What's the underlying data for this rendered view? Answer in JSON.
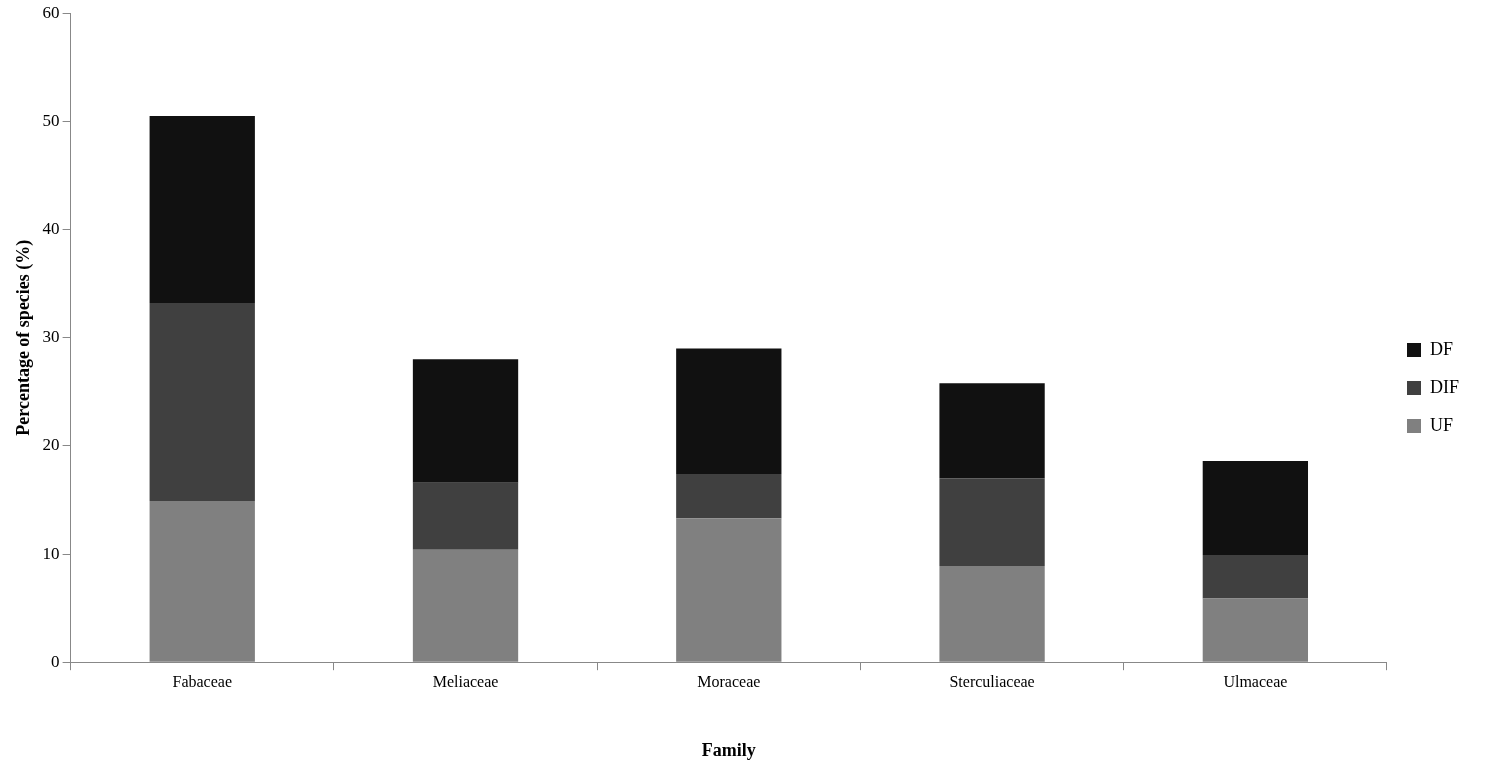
{
  "chart_data": {
    "type": "bar",
    "stacked": true,
    "xlabel": "Family",
    "ylabel": "Percentage of species (%)",
    "categories": [
      "Fabaceae",
      "Meliaceae",
      "Moraceae",
      "Sterculiaceae",
      "Ulmaceae"
    ],
    "series": [
      {
        "name": "UF",
        "color": "#808080",
        "values": [
          14.9,
          10.4,
          13.3,
          8.9,
          5.9
        ]
      },
      {
        "name": "DIF",
        "color": "#404040",
        "values": [
          18.3,
          6.2,
          4.1,
          8.1,
          4.0
        ]
      },
      {
        "name": "DF",
        "color": "#111111",
        "values": [
          17.3,
          11.4,
          11.6,
          8.8,
          8.7
        ]
      }
    ],
    "ylim": [
      0,
      60
    ],
    "yticks": [
      0,
      10,
      20,
      30,
      40,
      50,
      60
    ],
    "grid": false,
    "legend": "right"
  }
}
